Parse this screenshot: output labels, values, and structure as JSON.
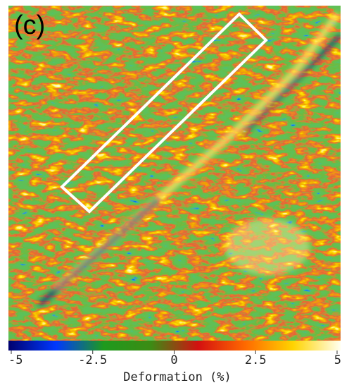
{
  "chart_data": {
    "type": "colorbar-map",
    "panel_label": "(c)",
    "colorbar_label": "Deformation (%)",
    "xlim": [
      -5,
      5
    ],
    "xticks": [
      -5,
      -2.5,
      0,
      2.5,
      5
    ],
    "colors": [
      "#00006e",
      "#0038ff",
      "#1e9a1e",
      "#3c8c14",
      "#d41010",
      "#ff6a00",
      "#ffd400",
      "#fffff0"
    ]
  }
}
